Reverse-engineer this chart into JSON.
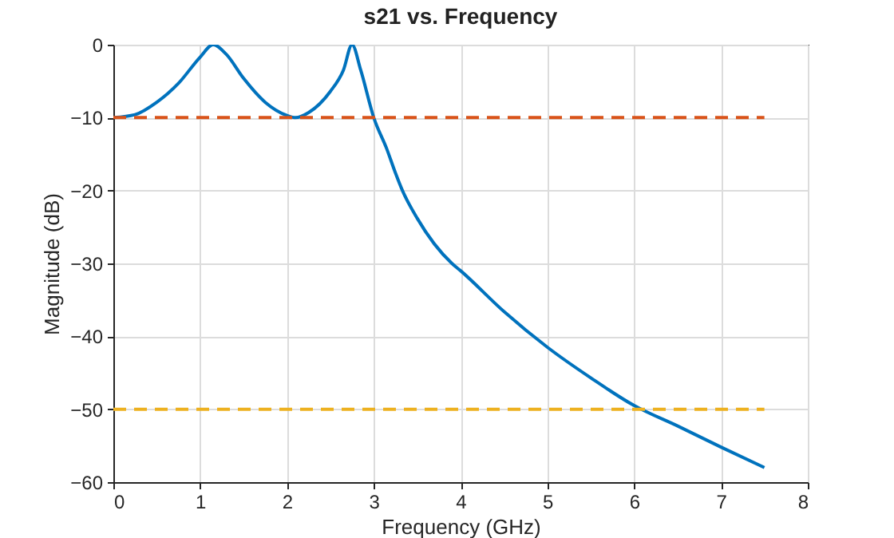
{
  "chart_data": {
    "type": "line",
    "title": "s21 vs. Frequency",
    "xlabel": "Frequency (GHz)",
    "ylabel": "Magnitude (dB)",
    "xlim": [
      0,
      8
    ],
    "ylim": [
      -60,
      0
    ],
    "xticks": [
      0,
      1,
      2,
      3,
      4,
      5,
      6,
      7,
      8
    ],
    "yticks": [
      -60,
      -50,
      -40,
      -30,
      -20,
      -10,
      0
    ],
    "grid": true,
    "marker": "none",
    "series": [
      {
        "color": "#0072bd",
        "line_style": "solid",
        "x": [
          0,
          0.25,
          0.5,
          0.75,
          1,
          1.15,
          1.3,
          1.5,
          1.75,
          2,
          2.1,
          2.25,
          2.5,
          2.65,
          2.75,
          2.85,
          3,
          3.15,
          3.25,
          3.33,
          3.5,
          3.9,
          4,
          4.5,
          5,
          5.5,
          6,
          6.5,
          7,
          7.5
        ],
        "values": [
          -10,
          -9.6,
          -7.9,
          -5.3,
          -1.7,
          0,
          -1.3,
          -4.6,
          -7.9,
          -9.7,
          -10,
          -9.3,
          -6.4,
          -3.5,
          0,
          -3.5,
          -10,
          -14.3,
          -17.6,
          -20,
          -23.8,
          -30,
          -31,
          -36.6,
          -41.5,
          -45.7,
          -49.5,
          -52.3,
          -55.2,
          -58
        ]
      },
      {
        "color": "#d95319",
        "line_style": "dashed",
        "x": [
          0,
          7.5
        ],
        "values": [
          -10,
          -10
        ]
      },
      {
        "color": "#edb120",
        "line_style": "dashed",
        "x": [
          0,
          7.5
        ],
        "values": [
          -50,
          -50
        ]
      }
    ]
  }
}
